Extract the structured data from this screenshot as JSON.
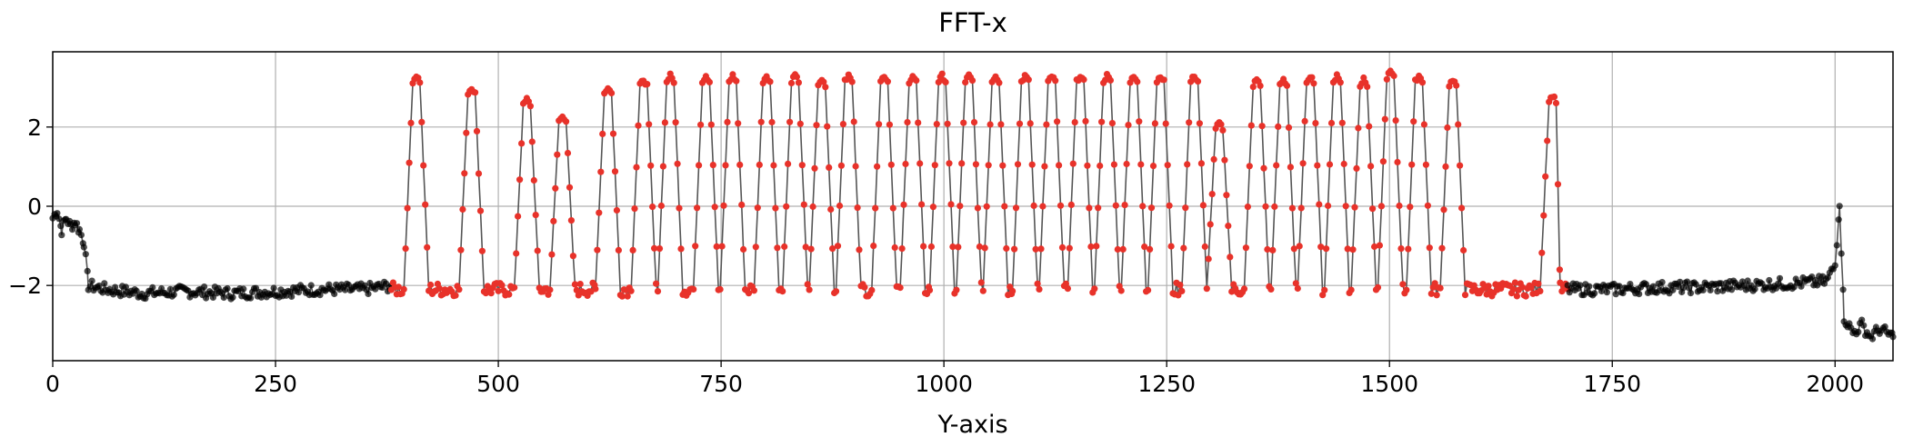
{
  "chart_data": {
    "type": "scatter",
    "title": "FFT-x",
    "xlabel": "Y-axis",
    "ylabel": "",
    "xlim": [
      0,
      2065
    ],
    "ylim": [
      -3.9,
      3.9
    ],
    "grid": true,
    "x_ticks": [
      0,
      250,
      500,
      750,
      1000,
      1250,
      1500,
      1750,
      2000
    ],
    "y_ticks": [
      -2,
      0,
      2
    ],
    "x_tick_labels": [
      "0",
      "250",
      "500",
      "750",
      "1000",
      "1250",
      "1500",
      "1750",
      "2000"
    ],
    "y_tick_labels": [
      "−2",
      "0",
      "2"
    ],
    "line_color": "#555555",
    "series": [
      {
        "color": "#000000",
        "x_range": [
          0,
          380
        ],
        "points": [
          [
            0,
            -0.3
          ],
          [
            5,
            -0.1
          ],
          [
            10,
            -0.6
          ],
          [
            15,
            -0.3
          ],
          [
            20,
            -0.5
          ],
          [
            25,
            -0.4
          ],
          [
            30,
            -0.6
          ],
          [
            35,
            -0.9
          ],
          [
            40,
            -2.0
          ],
          [
            60,
            -2.1
          ],
          [
            100,
            -2.2
          ],
          [
            150,
            -2.15
          ],
          [
            200,
            -2.2
          ],
          [
            250,
            -2.15
          ],
          [
            300,
            -2.1
          ],
          [
            350,
            -2.1
          ],
          [
            380,
            -2.0
          ]
        ]
      },
      {
        "color": "#e8322a",
        "x_range": [
          380,
          1700
        ],
        "peaks": [
          408,
          470,
          532,
          572,
          623,
          663,
          693,
          733,
          763,
          801,
          833,
          863,
          893,
          933,
          965,
          998,
          1028,
          1058,
          1091,
          1121,
          1153,
          1183,
          1213,
          1243,
          1281,
          1309,
          1351,
          1381,
          1411,
          1441,
          1471,
          1501,
          1533,
          1571,
          1683
        ],
        "peak_values": [
          3.3,
          3.0,
          2.7,
          2.3,
          3.0,
          3.2,
          3.3,
          3.3,
          3.3,
          3.3,
          3.3,
          3.2,
          3.3,
          3.3,
          3.3,
          3.3,
          3.3,
          3.3,
          3.3,
          3.3,
          3.3,
          3.3,
          3.3,
          3.3,
          3.3,
          2.1,
          3.2,
          3.2,
          3.3,
          3.3,
          3.2,
          3.4,
          3.3,
          3.2,
          2.8
        ],
        "trough_value": -2.1
      },
      {
        "color": "#000000",
        "x_range": [
          1700,
          2065
        ],
        "points": [
          [
            1700,
            -2.1
          ],
          [
            1750,
            -2.1
          ],
          [
            1800,
            -2.05
          ],
          [
            1850,
            -2.05
          ],
          [
            1900,
            -2.0
          ],
          [
            1950,
            -1.95
          ],
          [
            1990,
            -1.9
          ],
          [
            2000,
            -1.5
          ],
          [
            2005,
            0.1
          ],
          [
            2010,
            -2.8
          ],
          [
            2020,
            -3.2
          ],
          [
            2030,
            -3.0
          ],
          [
            2040,
            -3.3
          ],
          [
            2050,
            -3.1
          ],
          [
            2065,
            -3.3
          ]
        ]
      }
    ]
  }
}
